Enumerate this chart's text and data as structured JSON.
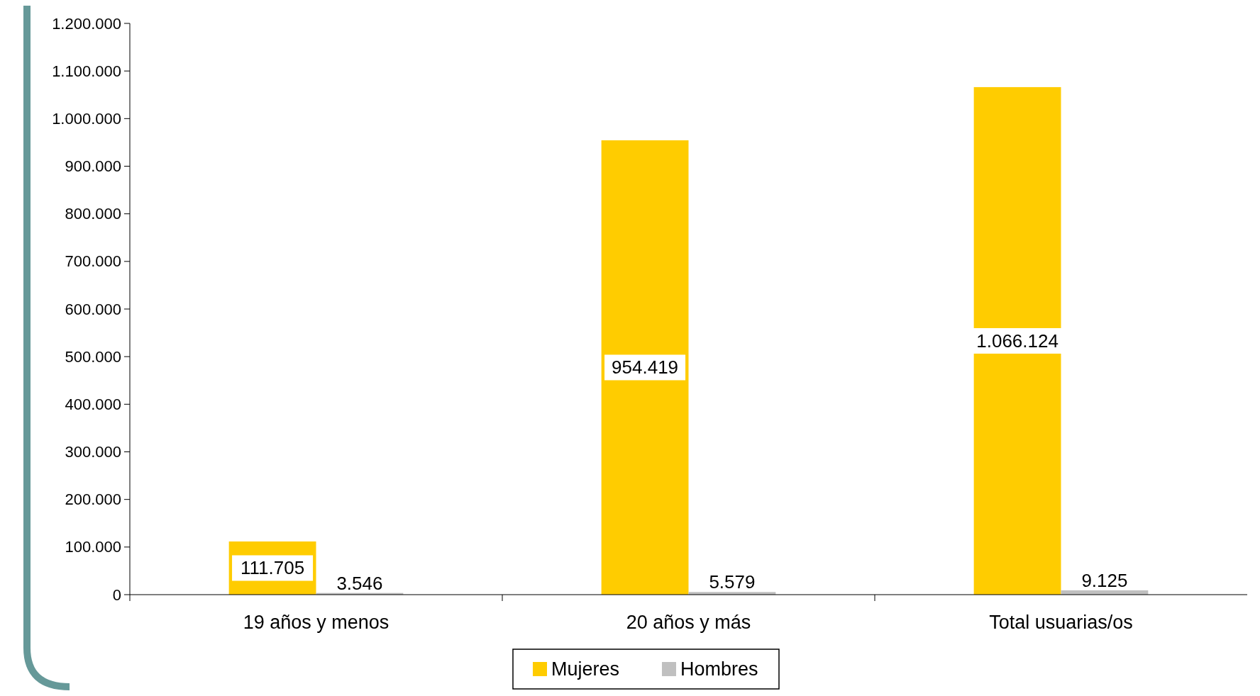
{
  "chart_data": {
    "type": "bar",
    "categories": [
      "19 años y menos",
      "20 años y más",
      "Total usuarias/os"
    ],
    "series": [
      {
        "name": "Mujeres",
        "color": "#ffcc00",
        "values": [
          111705,
          954419,
          1066124
        ],
        "value_labels": [
          "111.705",
          "954.419",
          "1.066.124"
        ]
      },
      {
        "name": "Hombres",
        "color": "#c0c0c0",
        "values": [
          3546,
          5579,
          9125
        ],
        "value_labels": [
          "3.546",
          "5.579",
          "9.125"
        ]
      }
    ],
    "ylim": [
      0,
      1200000
    ],
    "yticks": [
      {
        "value": 0,
        "label": "0"
      },
      {
        "value": 100000,
        "label": "100.000"
      },
      {
        "value": 200000,
        "label": "200.000"
      },
      {
        "value": 300000,
        "label": "300.000"
      },
      {
        "value": 400000,
        "label": "400.000"
      },
      {
        "value": 500000,
        "label": "500.000"
      },
      {
        "value": 600000,
        "label": "600.000"
      },
      {
        "value": 700000,
        "label": "700.000"
      },
      {
        "value": 800000,
        "label": "800.000"
      },
      {
        "value": 900000,
        "label": "900.000"
      },
      {
        "value": 1000000,
        "label": "1.000.000"
      },
      {
        "value": 1100000,
        "label": "1.100.000"
      },
      {
        "value": 1200000,
        "label": "1.200.000"
      }
    ],
    "legend": "bottom",
    "grid": false
  }
}
